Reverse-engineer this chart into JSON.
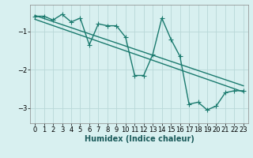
{
  "title": "",
  "xlabel": "Humidex (Indice chaleur)",
  "ylabel": "",
  "bg_color": "#d8f0f0",
  "grid_color": "#b8d8d8",
  "line_color": "#1a7a6e",
  "xlim": [
    -0.5,
    23.5
  ],
  "ylim": [
    -3.4,
    -0.3
  ],
  "yticks": [
    -3,
    -2,
    -1
  ],
  "xticks": [
    0,
    1,
    2,
    3,
    4,
    5,
    6,
    7,
    8,
    9,
    10,
    11,
    12,
    13,
    14,
    15,
    16,
    17,
    18,
    19,
    20,
    21,
    22,
    23
  ],
  "zigzag_x": [
    0,
    1,
    2,
    3,
    4,
    5,
    6,
    7,
    8,
    9,
    10,
    11,
    12,
    13,
    14,
    15,
    16,
    17,
    18,
    19,
    20,
    21,
    22,
    23
  ],
  "zigzag_y": [
    -0.6,
    -0.6,
    -0.7,
    -0.55,
    -0.75,
    -0.65,
    -1.35,
    -0.8,
    -0.85,
    -0.85,
    -1.15,
    -2.15,
    -2.15,
    -1.6,
    -0.65,
    -1.2,
    -1.65,
    -2.9,
    -2.85,
    -3.05,
    -2.95,
    -2.6,
    -2.55,
    -2.55
  ],
  "trend1_x": [
    0,
    23
  ],
  "trend1_y": [
    -0.58,
    -2.42
  ],
  "trend2_x": [
    0,
    23
  ],
  "trend2_y": [
    -0.68,
    -2.58
  ],
  "marker": "+",
  "markersize": 4,
  "linewidth": 1.0,
  "xlabel_fontsize": 7,
  "tick_fontsize": 6,
  "ylabel_fontsize": 7
}
